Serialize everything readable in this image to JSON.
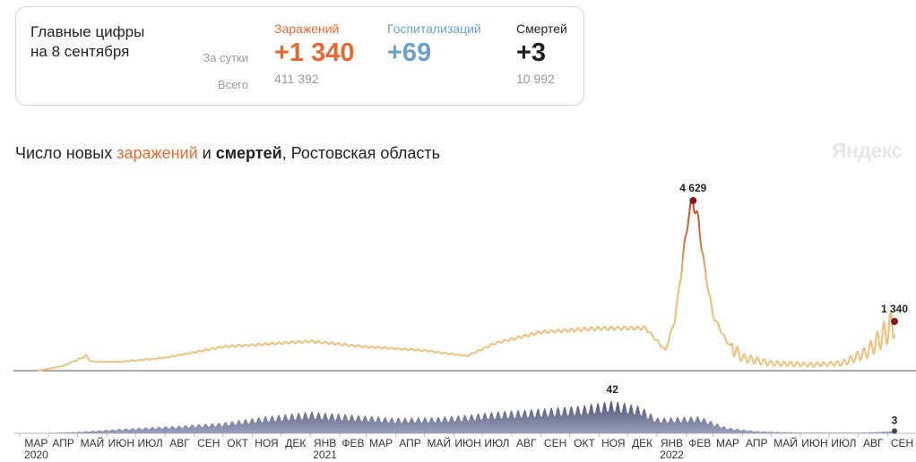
{
  "summary": {
    "title_line1": "Главные цифры",
    "title_line2": "на 8 сентября",
    "row_day_label": "За сутки",
    "row_total_label": "Всего",
    "infections": {
      "label": "Заражений",
      "day": "+1 340",
      "total": "411 392",
      "color": "#e8692f"
    },
    "hospitalizations": {
      "label": "Госпитализаций",
      "day": "+69",
      "total": "",
      "color": "#6aa2c8"
    },
    "deaths": {
      "label": "Смертей",
      "day": "+3",
      "total": "10 992",
      "color": "#1f1f1f"
    }
  },
  "chart_title": {
    "part1": "Число новых ",
    "part2": "заражений",
    "part3": " и ",
    "part4": "смертей",
    "part5": ", Ростовская область"
  },
  "watermark": "Яндекс",
  "chart_data": [
    {
      "type": "line",
      "series": [
        {
          "name": "заражений"
        }
      ],
      "x": [
        "2020-03-20",
        "2020-04-15",
        "2020-05-10",
        "2020-05-15",
        "2020-06-15",
        "2020-08-01",
        "2020-10-01",
        "2020-12-01",
        "2021-01-01",
        "2021-03-01",
        "2021-05-01",
        "2021-06-15",
        "2021-07-15",
        "2021-09-01",
        "2021-11-01",
        "2021-12-20",
        "2022-01-10",
        "2022-01-20",
        "2022-01-28",
        "2022-02-03",
        "2022-02-08",
        "2022-02-14",
        "2022-02-20",
        "2022-03-01",
        "2022-03-15",
        "2022-04-01",
        "2022-05-01",
        "2022-06-15",
        "2022-07-15",
        "2022-08-10",
        "2022-08-25",
        "2022-09-08"
      ],
      "y": [
        0,
        120,
        400,
        250,
        240,
        350,
        650,
        750,
        800,
        650,
        550,
        400,
        750,
        1050,
        1150,
        1160,
        550,
        1400,
        3000,
        4200,
        4629,
        4000,
        2800,
        1500,
        800,
        350,
        200,
        160,
        200,
        500,
        900,
        1340
      ],
      "annotations": [
        {
          "x": "2022-02-08",
          "label": "4 629"
        },
        {
          "x": "2022-09-08",
          "label": "1 340"
        }
      ],
      "color_low": "#f0c27a",
      "color_high": "#c44a2a"
    },
    {
      "type": "area",
      "series": [
        {
          "name": "смертей"
        }
      ],
      "x": [
        "2020-03-20",
        "2020-05-01",
        "2020-06-15",
        "2020-08-15",
        "2020-10-01",
        "2020-11-15",
        "2021-01-01",
        "2021-02-15",
        "2021-04-01",
        "2021-05-15",
        "2021-06-15",
        "2021-07-15",
        "2021-09-01",
        "2021-10-15",
        "2021-11-15",
        "2021-12-15",
        "2022-01-01",
        "2022-02-15",
        "2022-03-15",
        "2022-04-15",
        "2022-06-01",
        "2022-08-01",
        "2022-09-08"
      ],
      "y": [
        0,
        2,
        6,
        10,
        14,
        22,
        28,
        24,
        20,
        21,
        24,
        28,
        32,
        36,
        42,
        35,
        20,
        22,
        8,
        3,
        1,
        1,
        3
      ],
      "annotations": [
        {
          "x": "2021-11-15",
          "label": "42"
        },
        {
          "x": "2022-09-08",
          "label": "3"
        }
      ],
      "color": "#3d4468"
    }
  ],
  "x_axis": {
    "months": [
      "МАР",
      "АПР",
      "МАЙ",
      "ИЮН",
      "ИЮЛ",
      "АВГ",
      "СЕН",
      "ОКТ",
      "НОЯ",
      "ДЕК",
      "ЯНВ",
      "ФЕВ",
      "МАР",
      "АПР",
      "МАЙ",
      "ИЮН",
      "ИЮЛ",
      "АВГ",
      "СЕН",
      "ОКТ",
      "НОЯ",
      "ДЕК",
      "ЯНВ",
      "ФЕВ",
      "МАР",
      "АПР",
      "МАЙ",
      "ИЮН",
      "ИЮЛ",
      "АВГ",
      "СЕН"
    ],
    "years": [
      {
        "at": 0,
        "label": "2020"
      },
      {
        "at": 10,
        "label": "2021"
      },
      {
        "at": 22,
        "label": "2022"
      }
    ]
  }
}
